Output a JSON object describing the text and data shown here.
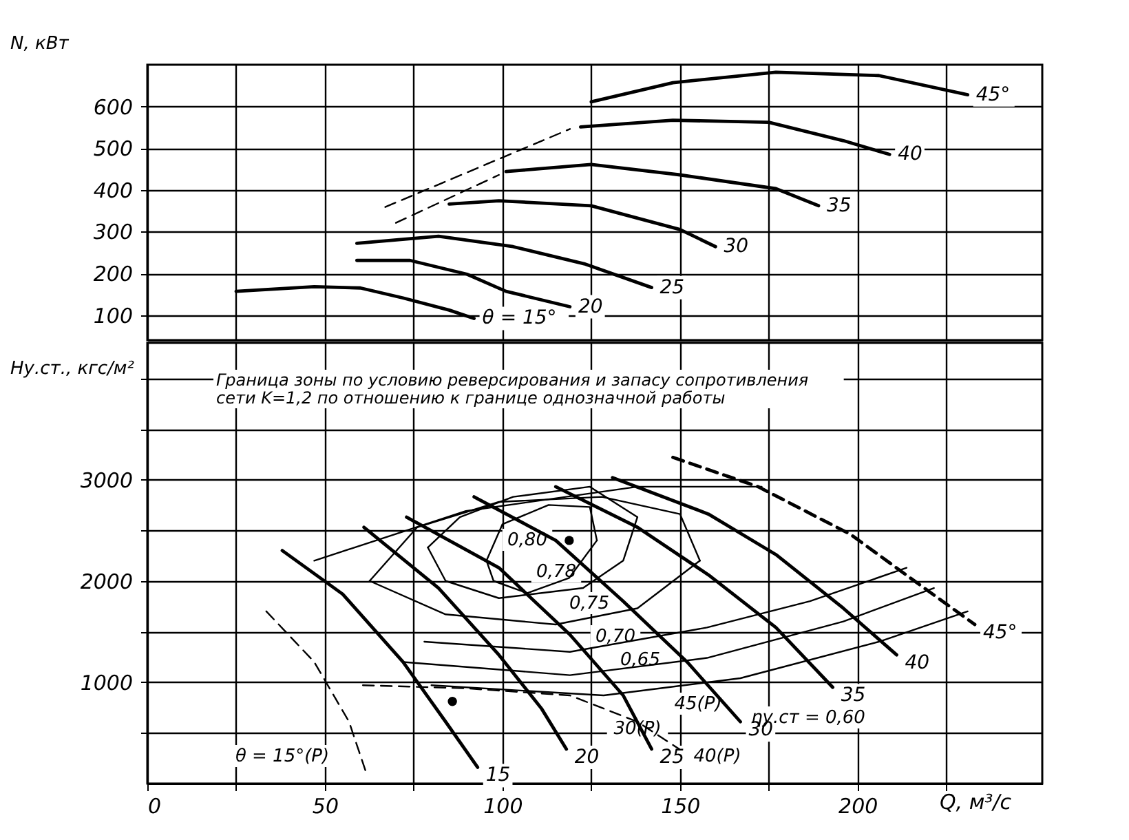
{
  "chart_data": [
    {
      "type": "line",
      "ylabel": "N, кВт",
      "xlim": [
        0,
        252
      ],
      "xticks": [
        0,
        {
          "value": 25,
          "label": null
        },
        50,
        {
          "value": 75,
          "label": null
        },
        100,
        {
          "value": 125,
          "label": null
        },
        150,
        {
          "value": 175,
          "label": null
        },
        200,
        {
          "value": 225,
          "label": null
        }
      ],
      "ylim": [
        40,
        700
      ],
      "yticks": [
        100,
        200,
        300,
        400,
        500,
        600
      ],
      "tick_labels": "y",
      "grid": true,
      "series": [
        {
          "name": "θ = 15°",
          "color": "#000000",
          "x": [
            25,
            47,
            60,
            72,
            85,
            92
          ],
          "values": [
            157,
            168,
            165,
            141,
            112,
            92
          ]
        },
        {
          "name": "20",
          "color": "#000000",
          "x": [
            59,
            74,
            90,
            101,
            119
          ],
          "values": [
            231,
            231,
            198,
            157,
            120
          ]
        },
        {
          "name": "25",
          "color": "#000000",
          "x": [
            59,
            82,
            103,
            123,
            142
          ],
          "values": [
            272,
            289,
            264,
            223,
            166
          ]
        },
        {
          "name": "30",
          "color": "#000000",
          "x": [
            85,
            99,
            125,
            150,
            160
          ],
          "values": [
            366,
            374,
            362,
            305,
            264
          ]
        },
        {
          "name": "35",
          "color": "#000000",
          "x": [
            101,
            125,
            150,
            177,
            189
          ],
          "values": [
            444,
            461,
            436,
            403,
            362
          ]
        },
        {
          "name": "40",
          "color": "#000000",
          "x": [
            122,
            148,
            175,
            196,
            209
          ],
          "values": [
            551,
            567,
            562,
            518,
            485
          ]
        },
        {
          "name": "45°",
          "color": "#000000",
          "x": [
            125,
            148,
            177,
            206,
            231
          ],
          "values": [
            611,
            657,
            682,
            674,
            628
          ]
        },
        {
          "color": "#000000",
          "line_style": "dashed",
          "x": [
            67,
            119
          ],
          "values": [
            359,
            546
          ]
        },
        {
          "color": "#000000",
          "line_style": "dashed",
          "x": [
            70,
            99
          ],
          "values": [
            321,
            436
          ]
        }
      ]
    },
    {
      "type": "line",
      "xlabel": "Q, м³/с",
      "ylabel": "Hу.ст., кгс/м²",
      "xlim": [
        0,
        252
      ],
      "xticks": [
        0,
        {
          "value": 25,
          "label": null
        },
        50,
        {
          "value": 75,
          "label": null
        },
        100,
        {
          "value": 125,
          "label": null
        },
        150,
        {
          "value": 175,
          "label": null
        },
        200,
        {
          "value": 225,
          "label": null
        }
      ],
      "ylim": [
        0,
        4350
      ],
      "yticks": [
        {
          "value": 500,
          "label": null
        },
        1000,
        {
          "value": 1500,
          "label": null
        },
        2000,
        {
          "value": 2500,
          "label": null
        },
        3000,
        {
          "value": 3500,
          "label": null
        },
        {
          "value": 4000,
          "label": null
        }
      ],
      "grid": true,
      "annotations": [
        "Граница зоны по условию реверсирования и запасу сопротивления сети K=1,2 по отношению к границе однозначной работы",
        "0,80",
        "0,78",
        "0,75",
        "0,70",
        "0,65",
        "ηу.ст = 0,60",
        "30(P)",
        "45(P)",
        "40(P)",
        "θ = 15°(P)"
      ],
      "series": [
        {
          "name": "15",
          "color": "#000000",
          "x": [
            38,
            55,
            72,
            84,
            93
          ],
          "values": [
            2300,
            1870,
            1200,
            610,
            160
          ]
        },
        {
          "name": "20",
          "color": "#000000",
          "x": [
            61,
            82,
            99,
            111,
            118
          ],
          "values": [
            2530,
            1930,
            1270,
            740,
            340
          ]
        },
        {
          "name": "25",
          "color": "#000000",
          "x": [
            73,
            99,
            119,
            134,
            142
          ],
          "values": [
            2630,
            2130,
            1470,
            870,
            340
          ]
        },
        {
          "name": "30",
          "color": "#000000",
          "x": [
            92,
            115,
            134,
            152,
            167
          ],
          "values": [
            2830,
            2400,
            1800,
            1200,
            610
          ]
        },
        {
          "name": "35",
          "color": "#000000",
          "x": [
            115,
            138,
            158,
            177,
            193
          ],
          "values": [
            2930,
            2530,
            2060,
            1540,
            950
          ]
        },
        {
          "name": "40",
          "color": "#000000",
          "x": [
            131,
            158,
            177,
            196,
            211
          ],
          "values": [
            3020,
            2660,
            2260,
            1730,
            1270
          ]
        },
        {
          "name": "45°",
          "color": "#000000",
          "line_style": "dashed",
          "x": [
            148,
            172,
            198,
            216,
            233
          ],
          "values": [
            3220,
            2930,
            2460,
            2000,
            1570
          ]
        },
        {
          "color": "#000000",
          "x": [
            95.5,
            100,
            113,
            124.6,
            126.6
          ],
          "values": [
            2200,
            2560,
            2750,
            2730,
            2400
          ]
        },
        {
          "color": "#000000",
          "x": [
            95.5,
            97.5,
            107,
            118.8,
            126.6
          ],
          "values": [
            2200,
            2000,
            1880,
            2030,
            2400
          ]
        },
        {
          "color": "#000000",
          "x": [
            79,
            88,
            103,
            124.6,
            138
          ],
          "values": [
            2330,
            2630,
            2830,
            2930,
            2630
          ]
        },
        {
          "color": "#000000",
          "x": [
            79,
            84,
            99,
            122.7,
            134,
            138
          ],
          "values": [
            2330,
            2000,
            1830,
            1930,
            2200,
            2630
          ]
        },
        {
          "color": "#000000",
          "x": [
            62.6,
            76,
            99,
            128,
            150,
            155.6
          ],
          "values": [
            2000,
            2530,
            2780,
            2830,
            2660,
            2200
          ]
        },
        {
          "color": "#000000",
          "x": [
            62.6,
            84,
            115,
            138,
            155.6
          ],
          "values": [
            2000,
            1670,
            1570,
            1730,
            2200
          ]
        },
        {
          "color": "#000000",
          "x": [
            78,
            119,
            157.6,
            186.6,
            213.8
          ],
          "values": [
            1400,
            1300,
            1540,
            1800,
            2130
          ]
        },
        {
          "color": "#000000",
          "x": [
            72,
            119,
            157.6,
            196,
            221.5
          ],
          "values": [
            1200,
            1070,
            1240,
            1600,
            1930
          ]
        },
        {
          "color": "#000000",
          "x": [
            80,
            128.5,
            167,
            206,
            231
          ],
          "values": [
            970,
            870,
            1040,
            1400,
            1700
          ]
        },
        {
          "color": "#000000",
          "x": [
            47,
            89.7,
            138,
            173
          ],
          "values": [
            2200,
            2690,
            2930,
            2930
          ]
        },
        {
          "color": "#000000",
          "line_style": "dashed",
          "x": [
            33.5,
            47,
            56.8,
            61.6
          ],
          "values": [
            1700,
            1200,
            610,
            110
          ]
        },
        {
          "color": "#000000",
          "line_style": "dashed",
          "x": [
            60.7,
            89.7,
            119,
            138,
            149.8
          ],
          "values": [
            970,
            940,
            870,
            610,
            340
          ]
        },
        {
          "type": "scatter",
          "marker": "circle",
          "color": "#000000",
          "x": [
            118.8,
            85.9
          ],
          "values": [
            2400,
            810
          ]
        }
      ]
    }
  ]
}
